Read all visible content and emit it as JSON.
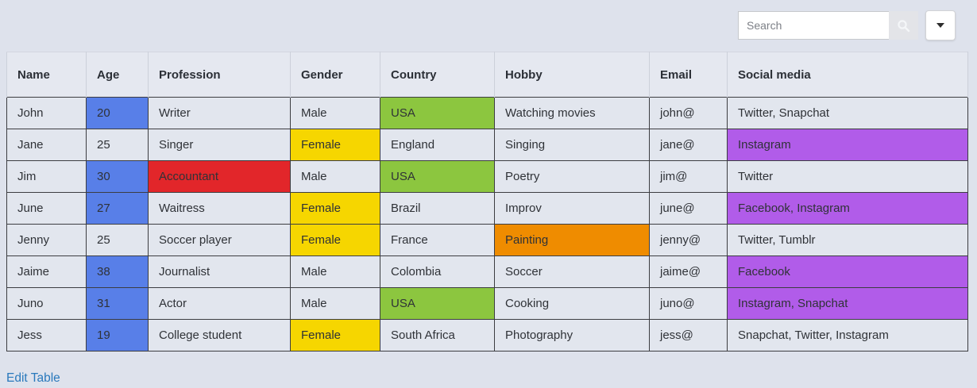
{
  "colors": {
    "blue": "#587fe8",
    "green": "#8cc63f",
    "yellow": "#f6d600",
    "red": "#e2262a",
    "orange": "#ef8c00",
    "purple": "#b15ce9",
    "link": "#2a79bc",
    "page_bg": "#dee2ec",
    "cell_bg": "#e2e6ee",
    "header_bg": "#e5e8f0"
  },
  "search": {
    "placeholder": "Search",
    "search_icon": "magnifier-icon",
    "dropdown_icon": "caret-down-icon"
  },
  "table": {
    "columns": [
      "Name",
      "Age",
      "Profession",
      "Gender",
      "Country",
      "Hobby",
      "Email",
      "Social media"
    ],
    "rows": [
      {
        "cells": [
          "John",
          "20",
          "Writer",
          "Male",
          "USA",
          "Watching movies",
          "john@",
          "Twitter, Snapchat"
        ],
        "highlights": {
          "1": "blue",
          "4": "green"
        }
      },
      {
        "cells": [
          "Jane",
          "25",
          "Singer",
          "Female",
          "England",
          "Singing",
          "jane@",
          "Instagram"
        ],
        "highlights": {
          "3": "yellow",
          "7": "purple"
        }
      },
      {
        "cells": [
          "Jim",
          "30",
          "Accountant",
          "Male",
          "USA",
          "Poetry",
          "jim@",
          "Twitter"
        ],
        "highlights": {
          "1": "blue",
          "2": "red",
          "4": "green"
        }
      },
      {
        "cells": [
          "June",
          "27",
          "Waitress",
          "Female",
          "Brazil",
          "Improv",
          "june@",
          "Facebook, Instagram"
        ],
        "highlights": {
          "1": "blue",
          "3": "yellow",
          "7": "purple"
        }
      },
      {
        "cells": [
          "Jenny",
          "25",
          "Soccer player",
          "Female",
          "France",
          "Painting",
          "jenny@",
          "Twitter, Tumblr"
        ],
        "highlights": {
          "3": "yellow",
          "5": "orange"
        }
      },
      {
        "cells": [
          "Jaime",
          "38",
          "Journalist",
          "Male",
          "Colombia",
          "Soccer",
          "jaime@",
          "Facebook"
        ],
        "highlights": {
          "1": "blue",
          "7": "purple"
        }
      },
      {
        "cells": [
          "Juno",
          "31",
          "Actor",
          "Male",
          "USA",
          "Cooking",
          "juno@",
          "Instagram, Snapchat"
        ],
        "highlights": {
          "1": "blue",
          "4": "green",
          "7": "purple"
        }
      },
      {
        "cells": [
          "Jess",
          "19",
          "College student",
          "Female",
          "South Africa",
          "Photography",
          "jess@",
          "Snapchat, Twitter, Instagram"
        ],
        "highlights": {
          "1": "blue",
          "3": "yellow"
        }
      }
    ]
  },
  "footer": {
    "edit_link": "Edit Table"
  }
}
